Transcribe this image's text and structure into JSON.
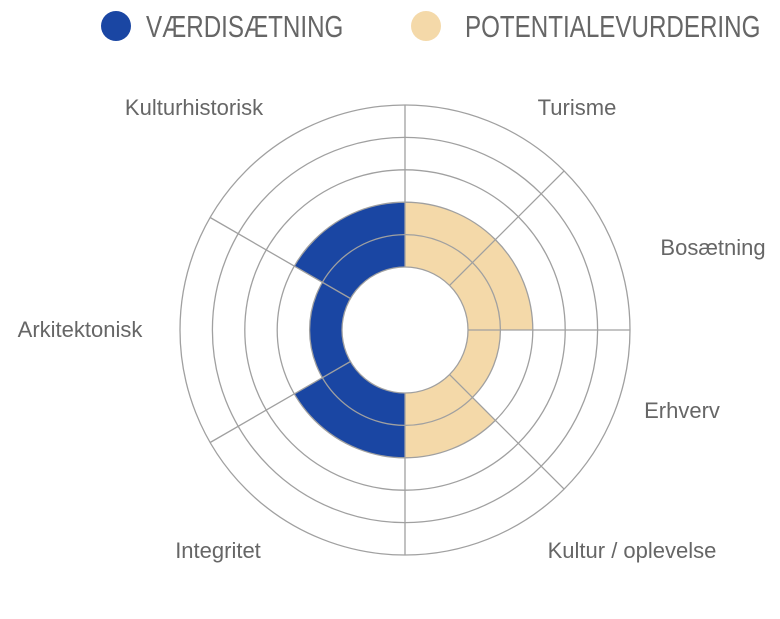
{
  "chart_data": {
    "type": "radial-bar",
    "legend_position": "top",
    "series": [
      {
        "name": "VÆRDISÆTNING",
        "color": "#1a46a3",
        "categories": [
          "Kulturhistorisk",
          "Arkitektonisk",
          "Integritet"
        ],
        "values": [
          2,
          1,
          2
        ]
      },
      {
        "name": "POTENTIALEVURDERING",
        "color": "#f4d9a9",
        "categories": [
          "Turisme",
          "Bosætning",
          "Erhverv",
          "Kultur / oplevelse"
        ],
        "values": [
          2,
          2,
          1,
          2
        ]
      }
    ],
    "rlim": [
      0,
      5
    ],
    "grid": true,
    "grid_color": "#a0a0a0"
  }
}
